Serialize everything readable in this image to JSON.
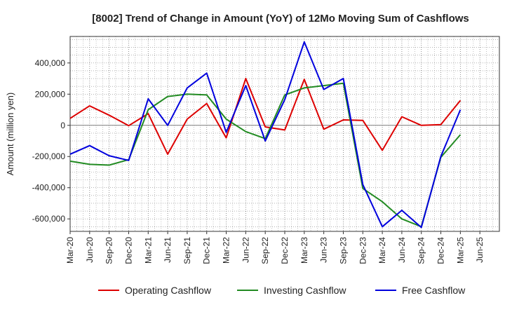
{
  "chart_data": {
    "type": "line",
    "title": "[8002]  Trend of Change in Amount (YoY) of 12Mo Moving Sum of Cashflows",
    "xlabel": "",
    "ylabel": "Amount (million yen)",
    "ylim": [
      -680000,
      570000
    ],
    "yticks": [
      400000,
      200000,
      0,
      -200000,
      -400000,
      -600000
    ],
    "ytick_labels": [
      "400,000",
      "200,000",
      "0",
      "-200,000",
      "-400,000",
      "-600,000"
    ],
    "categories": [
      "Mar-20",
      "Jun-20",
      "Sep-20",
      "Dec-20",
      "Mar-21",
      "Jun-21",
      "Sep-21",
      "Dec-21",
      "Mar-22",
      "Jun-22",
      "Sep-22",
      "Dec-22",
      "Mar-23",
      "Jun-23",
      "Sep-23",
      "Dec-23",
      "Mar-24",
      "Jun-24",
      "Sep-24",
      "Dec-24",
      "Mar-25",
      "Jun-25"
    ],
    "grid": true,
    "legend_position": "bottom",
    "series": [
      {
        "name": "Operating Cashflow",
        "color": "#dd0000",
        "values": [
          45000,
          125000,
          65000,
          -2000,
          75000,
          -185000,
          40000,
          140000,
          -80000,
          300000,
          -10000,
          -30000,
          295000,
          -25000,
          35000,
          32000,
          -160000,
          55000,
          0,
          5000,
          160000,
          null
        ]
      },
      {
        "name": "Investing Cashflow",
        "color": "#228b22",
        "values": [
          -230000,
          -250000,
          -255000,
          -220000,
          100000,
          185000,
          200000,
          195000,
          40000,
          -40000,
          -85000,
          195000,
          240000,
          255000,
          270000,
          -405000,
          -490000,
          -600000,
          -650000,
          -205000,
          -60000,
          null
        ]
      },
      {
        "name": "Free Cashflow",
        "color": "#0000dd",
        "values": [
          -185000,
          -130000,
          -195000,
          -225000,
          170000,
          0,
          240000,
          335000,
          -45000,
          255000,
          -100000,
          165000,
          535000,
          230000,
          300000,
          -380000,
          -650000,
          -545000,
          -655000,
          -200000,
          100000,
          null
        ]
      }
    ]
  }
}
